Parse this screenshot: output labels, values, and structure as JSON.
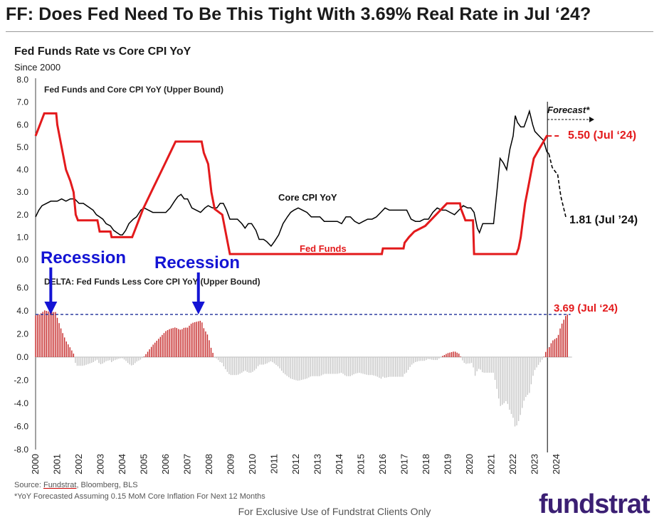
{
  "page_title": "FF: Does Fed Need To Be This Tight With 3.69% Real Rate in Jul ‘24?",
  "footer": {
    "source_prefix": "Source: ",
    "source_underlined": "Fundstrat",
    "source_rest": ", Bloomberg, BLS",
    "note": "*YoY Forecasted Assuming 0.15 MoM Core Inflation For Next 12 Months",
    "exclusive": "For Exclusive Use of Fundstrat Clients Only",
    "logo": "fundstrat"
  },
  "colors": {
    "fed_funds": "#e31a1c",
    "core_cpi": "#000000",
    "bars_positive": "#c62828",
    "bars_negative": "#c8c8c8",
    "arrows": "#1414d4",
    "delta_line": "#1f2f9a",
    "logo": "#3b1f73"
  },
  "chart_data": {
    "type": "line",
    "title": "Fed Funds Rate vs Core CPI YoY",
    "subtitle": "Since 2000",
    "x_ticks": [
      "2000",
      "2001",
      "2002",
      "2003",
      "2004",
      "2005",
      "2006",
      "2007",
      "2008",
      "2009",
      "2010",
      "2011",
      "2012",
      "2013",
      "2014",
      "2015",
      "2016",
      "2017",
      "2018",
      "2019",
      "2020",
      "2021",
      "2022",
      "2023",
      "2024"
    ],
    "upper_panel": {
      "title": "Fed Funds and Core CPI YoY (Upper Bound)",
      "ylim": [
        0,
        8
      ],
      "y_ticks": [
        "0.0",
        "1.0",
        "2.0",
        "3.0",
        "4.0",
        "5.0",
        "6.0",
        "7.0",
        "8.0"
      ],
      "series": [
        {
          "name": "Fed Funds",
          "label": "Fed Funds",
          "points": [
            [
              2000.0,
              5.5
            ],
            [
              2000.2,
              6.0
            ],
            [
              2000.4,
              6.5
            ],
            [
              2000.95,
              6.5
            ],
            [
              2001.0,
              6.0
            ],
            [
              2001.2,
              5.0
            ],
            [
              2001.4,
              4.0
            ],
            [
              2001.6,
              3.5
            ],
            [
              2001.75,
              3.0
            ],
            [
              2001.85,
              2.0
            ],
            [
              2001.95,
              1.75
            ],
            [
              2002.85,
              1.75
            ],
            [
              2002.95,
              1.25
            ],
            [
              2003.45,
              1.25
            ],
            [
              2003.5,
              1.0
            ],
            [
              2004.45,
              1.0
            ],
            [
              2004.55,
              1.25
            ],
            [
              2004.75,
              1.75
            ],
            [
              2004.95,
              2.25
            ],
            [
              2005.2,
              2.75
            ],
            [
              2005.45,
              3.25
            ],
            [
              2005.7,
              3.75
            ],
            [
              2005.95,
              4.25
            ],
            [
              2006.2,
              4.75
            ],
            [
              2006.45,
              5.25
            ],
            [
              2007.65,
              5.25
            ],
            [
              2007.75,
              4.75
            ],
            [
              2007.95,
              4.25
            ],
            [
              2008.1,
              3.0
            ],
            [
              2008.25,
              2.25
            ],
            [
              2008.6,
              2.0
            ],
            [
              2008.8,
              1.0
            ],
            [
              2008.95,
              0.25
            ],
            [
              2015.95,
              0.25
            ],
            [
              2016.0,
              0.5
            ],
            [
              2016.95,
              0.5
            ],
            [
              2017.0,
              0.75
            ],
            [
              2017.2,
              1.0
            ],
            [
              2017.45,
              1.25
            ],
            [
              2017.95,
              1.5
            ],
            [
              2018.2,
              1.75
            ],
            [
              2018.45,
              2.0
            ],
            [
              2018.7,
              2.25
            ],
            [
              2018.95,
              2.5
            ],
            [
              2019.55,
              2.5
            ],
            [
              2019.6,
              2.25
            ],
            [
              2019.7,
              2.0
            ],
            [
              2019.8,
              1.75
            ],
            [
              2020.15,
              1.75
            ],
            [
              2020.2,
              0.25
            ],
            [
              2022.15,
              0.25
            ],
            [
              2022.25,
              0.5
            ],
            [
              2022.35,
              1.0
            ],
            [
              2022.45,
              1.75
            ],
            [
              2022.55,
              2.5
            ],
            [
              2022.7,
              3.25
            ],
            [
              2022.85,
              4.0
            ],
            [
              2022.95,
              4.5
            ],
            [
              2023.1,
              4.75
            ],
            [
              2023.25,
              5.0
            ],
            [
              2023.55,
              5.5
            ],
            [
              2023.58,
              5.5
            ]
          ]
        },
        {
          "name": "Fed Funds Forecast",
          "points": [
            [
              2023.58,
              5.5
            ],
            [
              2024.2,
              5.5
            ]
          ]
        },
        {
          "name": "Core CPI YoY",
          "label": "Core CPI YoY",
          "points": [
            [
              2000.0,
              1.9
            ],
            [
              2000.15,
              2.2
            ],
            [
              2000.3,
              2.4
            ],
            [
              2000.5,
              2.5
            ],
            [
              2000.7,
              2.6
            ],
            [
              2000.85,
              2.6
            ],
            [
              2001.0,
              2.6
            ],
            [
              2001.2,
              2.7
            ],
            [
              2001.4,
              2.6
            ],
            [
              2001.6,
              2.7
            ],
            [
              2001.8,
              2.7
            ],
            [
              2002.0,
              2.5
            ],
            [
              2002.2,
              2.5
            ],
            [
              2002.35,
              2.4
            ],
            [
              2002.5,
              2.3
            ],
            [
              2002.65,
              2.2
            ],
            [
              2002.8,
              2.0
            ],
            [
              2002.95,
              1.9
            ],
            [
              2003.1,
              1.8
            ],
            [
              2003.25,
              1.6
            ],
            [
              2003.45,
              1.5
            ],
            [
              2003.6,
              1.3
            ],
            [
              2003.75,
              1.2
            ],
            [
              2003.9,
              1.1
            ],
            [
              2004.0,
              1.1
            ],
            [
              2004.15,
              1.3
            ],
            [
              2004.3,
              1.6
            ],
            [
              2004.5,
              1.8
            ],
            [
              2004.65,
              1.9
            ],
            [
              2004.85,
              2.2
            ],
            [
              2005.0,
              2.3
            ],
            [
              2005.2,
              2.2
            ],
            [
              2005.4,
              2.1
            ],
            [
              2005.6,
              2.1
            ],
            [
              2005.8,
              2.1
            ],
            [
              2006.0,
              2.1
            ],
            [
              2006.2,
              2.3
            ],
            [
              2006.4,
              2.6
            ],
            [
              2006.55,
              2.8
            ],
            [
              2006.7,
              2.9
            ],
            [
              2006.85,
              2.7
            ],
            [
              2007.0,
              2.7
            ],
            [
              2007.2,
              2.3
            ],
            [
              2007.4,
              2.2
            ],
            [
              2007.6,
              2.1
            ],
            [
              2007.8,
              2.3
            ],
            [
              2007.95,
              2.4
            ],
            [
              2008.15,
              2.3
            ],
            [
              2008.35,
              2.3
            ],
            [
              2008.5,
              2.5
            ],
            [
              2008.65,
              2.5
            ],
            [
              2008.8,
              2.2
            ],
            [
              2008.95,
              1.8
            ],
            [
              2009.1,
              1.8
            ],
            [
              2009.3,
              1.8
            ],
            [
              2009.5,
              1.6
            ],
            [
              2009.65,
              1.4
            ],
            [
              2009.8,
              1.6
            ],
            [
              2009.95,
              1.6
            ],
            [
              2010.15,
              1.3
            ],
            [
              2010.3,
              0.9
            ],
            [
              2010.5,
              0.9
            ],
            [
              2010.65,
              0.8
            ],
            [
              2010.85,
              0.6
            ],
            [
              2011.0,
              0.8
            ],
            [
              2011.2,
              1.1
            ],
            [
              2011.4,
              1.6
            ],
            [
              2011.6,
              1.9
            ],
            [
              2011.75,
              2.1
            ],
            [
              2011.9,
              2.2
            ],
            [
              2012.1,
              2.3
            ],
            [
              2012.3,
              2.2
            ],
            [
              2012.5,
              2.1
            ],
            [
              2012.7,
              1.9
            ],
            [
              2012.9,
              1.9
            ],
            [
              2013.1,
              1.9
            ],
            [
              2013.3,
              1.7
            ],
            [
              2013.5,
              1.7
            ],
            [
              2013.7,
              1.7
            ],
            [
              2013.9,
              1.7
            ],
            [
              2014.1,
              1.6
            ],
            [
              2014.3,
              1.9
            ],
            [
              2014.5,
              1.9
            ],
            [
              2014.7,
              1.7
            ],
            [
              2014.9,
              1.6
            ],
            [
              2015.1,
              1.7
            ],
            [
              2015.3,
              1.8
            ],
            [
              2015.5,
              1.8
            ],
            [
              2015.7,
              1.9
            ],
            [
              2015.9,
              2.1
            ],
            [
              2016.1,
              2.3
            ],
            [
              2016.3,
              2.2
            ],
            [
              2016.5,
              2.2
            ],
            [
              2016.7,
              2.2
            ],
            [
              2016.9,
              2.2
            ],
            [
              2017.1,
              2.2
            ],
            [
              2017.3,
              1.8
            ],
            [
              2017.5,
              1.7
            ],
            [
              2017.7,
              1.7
            ],
            [
              2017.9,
              1.8
            ],
            [
              2018.1,
              1.8
            ],
            [
              2018.3,
              2.1
            ],
            [
              2018.5,
              2.3
            ],
            [
              2018.7,
              2.2
            ],
            [
              2018.9,
              2.2
            ],
            [
              2019.1,
              2.1
            ],
            [
              2019.3,
              2.0
            ],
            [
              2019.5,
              2.2
            ],
            [
              2019.7,
              2.4
            ],
            [
              2019.9,
              2.3
            ],
            [
              2020.05,
              2.3
            ],
            [
              2020.2,
              2.1
            ],
            [
              2020.35,
              1.4
            ],
            [
              2020.45,
              1.2
            ],
            [
              2020.6,
              1.6
            ],
            [
              2020.8,
              1.6
            ],
            [
              2020.95,
              1.6
            ],
            [
              2021.1,
              1.6
            ],
            [
              2021.25,
              3.0
            ],
            [
              2021.4,
              4.5
            ],
            [
              2021.55,
              4.3
            ],
            [
              2021.7,
              4.0
            ],
            [
              2021.85,
              4.9
            ],
            [
              2022.0,
              5.5
            ],
            [
              2022.1,
              6.4
            ],
            [
              2022.2,
              6.1
            ],
            [
              2022.35,
              5.9
            ],
            [
              2022.5,
              5.9
            ],
            [
              2022.65,
              6.3
            ],
            [
              2022.75,
              6.6
            ],
            [
              2022.9,
              6.0
            ],
            [
              2023.0,
              5.7
            ],
            [
              2023.2,
              5.5
            ],
            [
              2023.4,
              5.3
            ],
            [
              2023.55,
              4.8
            ],
            [
              2023.65,
              4.7
            ]
          ]
        },
        {
          "name": "Core CPI YoY Forecast",
          "points": [
            [
              2023.65,
              4.7
            ],
            [
              2023.8,
              4.1
            ],
            [
              2023.95,
              3.9
            ],
            [
              2024.05,
              3.8
            ],
            [
              2024.2,
              2.8
            ],
            [
              2024.35,
              2.2
            ],
            [
              2024.45,
              1.81
            ]
          ]
        }
      ],
      "annotations": {
        "forecast": "Forecast*",
        "ff_end": "5.50 (Jul ‘24)",
        "cpi_end": "1.81 (Jul ’24)"
      }
    },
    "lower_panel": {
      "title": "DELTA: Fed Funds Less Core CPI YoY (Upper Bound)",
      "type": "bar",
      "ylim": [
        -8,
        6
      ],
      "y_ticks": [
        "-8.0",
        "-6.0",
        "-4.0",
        "-2.0",
        "0.0",
        "2.0",
        "4.0",
        "6.0"
      ],
      "reference_value": 3.69,
      "reference_label": "3.69 (Jul ‘24)",
      "recession_labels": [
        "Recession",
        "Recession"
      ],
      "recession_x": [
        2000.7,
        2007.5
      ]
    }
  }
}
